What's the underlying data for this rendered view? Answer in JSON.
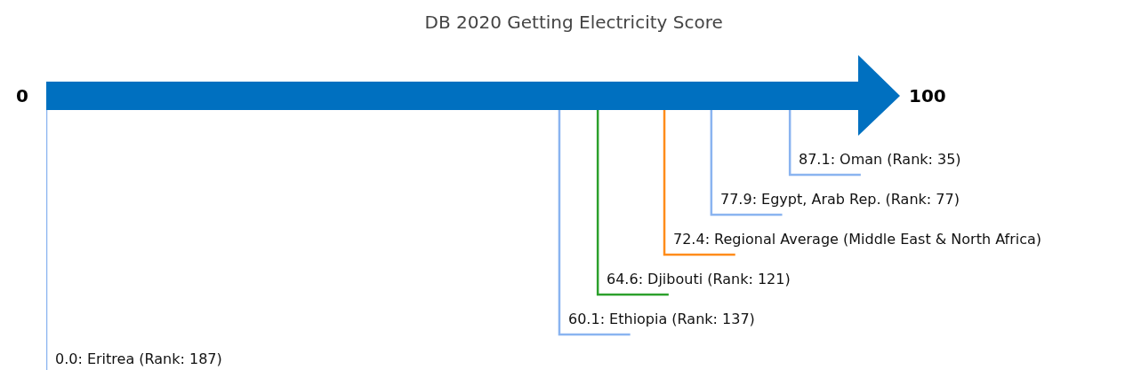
{
  "chart_data": {
    "type": "other",
    "title": "DB 2020 Getting Electricity Score",
    "annotations": [
      "0",
      "100"
    ],
    "values": [
      87.1,
      77.9,
      72.4,
      64.6,
      60.1,
      0.0
    ],
    "colors": [
      "#8ab4f0",
      "#8ab4f0",
      "#ff8c1a",
      "#2ca02c",
      "#8ab4f0",
      "#8ab4f0"
    ],
    "value_labels": [
      "87.1: Oman (Rank: 35)",
      "77.9: Egypt, Arab Rep. (Rank: 77)",
      "72.4: Regional Average (Middle East & North Africa)",
      "64.6: Djibouti (Rank: 121)",
      "60.1: Ethiopia (Rank: 137)",
      "0.0: Eritrea (Rank: 187)"
    ]
  }
}
